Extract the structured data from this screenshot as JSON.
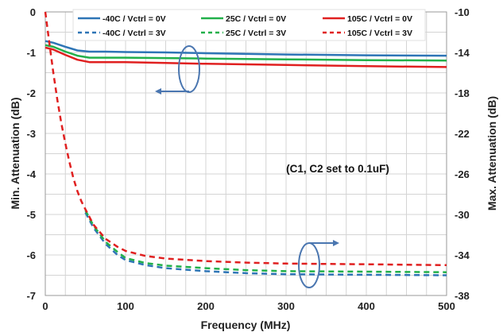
{
  "chart_data": {
    "type": "line",
    "xlabel": "Frequency (MHz)",
    "ylabel_left": "Min. Attenuation (dB)",
    "ylabel_right": "Max. Attenuation (dB)",
    "xlim": [
      0,
      500
    ],
    "ylim_left": [
      -7,
      0
    ],
    "ylim_right": [
      -38,
      -10
    ],
    "x_ticks": [
      0,
      100,
      200,
      300,
      400,
      500
    ],
    "y_ticks_left": [
      0,
      -1,
      -2,
      -3,
      -4,
      -5,
      -6,
      -7
    ],
    "y_ticks_right": [
      -10,
      -14,
      -18,
      -22,
      -26,
      -30,
      -34,
      -38
    ],
    "grid": true,
    "legend_position": "top",
    "annotation": "(C1, C2 set to 0.1uF)",
    "series": [
      {
        "name": "-40C /  Vctrl = 0V",
        "axis": "left",
        "style": "solid",
        "color": "#2e75b6",
        "x": [
          0,
          10,
          25,
          40,
          55,
          75,
          100,
          150,
          200,
          300,
          400,
          500
        ],
        "y": [
          -0.72,
          -0.76,
          -0.86,
          -0.95,
          -0.98,
          -0.98,
          -0.99,
          -1.0,
          -1.02,
          -1.05,
          -1.07,
          -1.08
        ]
      },
      {
        "name": "25C /  Vctrl = 0V",
        "axis": "left",
        "style": "solid",
        "color": "#22b04a",
        "x": [
          0,
          10,
          25,
          40,
          55,
          75,
          100,
          150,
          200,
          300,
          400,
          500
        ],
        "y": [
          -0.82,
          -0.86,
          -0.98,
          -1.08,
          -1.13,
          -1.13,
          -1.13,
          -1.14,
          -1.15,
          -1.17,
          -1.19,
          -1.2
        ]
      },
      {
        "name": "105C /  Vctrl = 0V",
        "axis": "left",
        "style": "solid",
        "color": "#e02020",
        "x": [
          0,
          10,
          25,
          40,
          55,
          75,
          100,
          150,
          200,
          300,
          400,
          500
        ],
        "y": [
          -0.88,
          -0.93,
          -1.06,
          -1.18,
          -1.24,
          -1.24,
          -1.24,
          -1.26,
          -1.28,
          -1.31,
          -1.34,
          -1.36
        ]
      },
      {
        "name": "-40C /  Vctrl = 3V",
        "axis": "right",
        "style": "dashed",
        "color": "#2e75b6",
        "x": [
          50,
          60,
          75,
          90,
          100,
          125,
          150,
          200,
          250,
          300,
          400,
          500
        ],
        "y": [
          -29.8,
          -31.3,
          -32.9,
          -34.0,
          -34.5,
          -35.0,
          -35.3,
          -35.6,
          -35.8,
          -35.9,
          -35.95,
          -36.0
        ]
      },
      {
        "name": "25C /  Vctrl = 3V",
        "axis": "right",
        "style": "dashed",
        "color": "#22b04a",
        "x": [
          50,
          60,
          75,
          90,
          100,
          125,
          150,
          200,
          250,
          300,
          400,
          500
        ],
        "y": [
          -29.6,
          -31.1,
          -32.7,
          -33.7,
          -34.3,
          -34.8,
          -35.05,
          -35.3,
          -35.5,
          -35.6,
          -35.65,
          -35.7
        ]
      },
      {
        "name": "105C /  Vctrl = 3V",
        "axis": "right",
        "style": "dashed",
        "color": "#e02020",
        "x": [
          0,
          5,
          10,
          15,
          20,
          25,
          30,
          35,
          40,
          45,
          50,
          60,
          75,
          90,
          100,
          125,
          150,
          200,
          250,
          300,
          400,
          500
        ],
        "y": [
          -10,
          -13.0,
          -16.0,
          -18.7,
          -21.0,
          -23.0,
          -24.8,
          -26.4,
          -27.7,
          -28.7,
          -29.5,
          -31.0,
          -32.4,
          -33.2,
          -33.6,
          -34.1,
          -34.35,
          -34.6,
          -34.75,
          -34.85,
          -34.92,
          -35.0
        ]
      }
    ]
  }
}
